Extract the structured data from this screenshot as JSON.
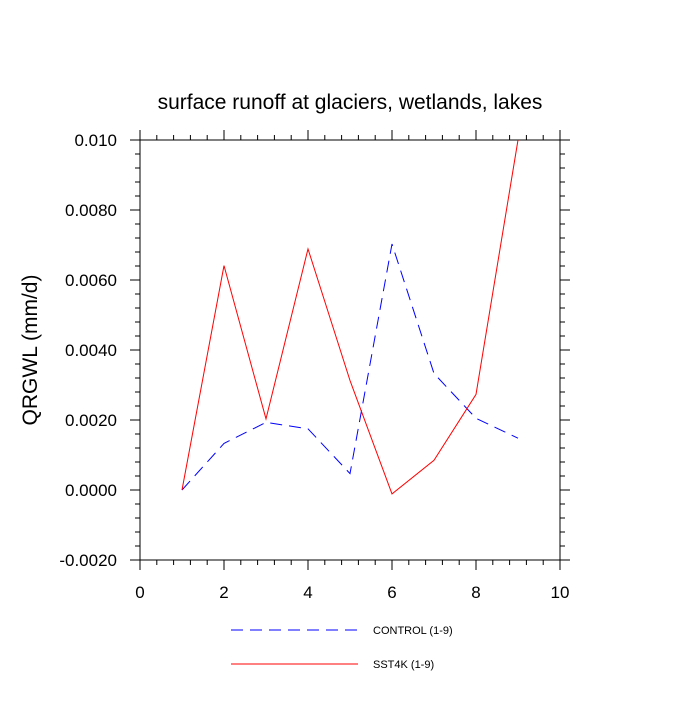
{
  "chart_data": {
    "type": "line",
    "title": "surface runoff at glaciers, wetlands, lakes",
    "xlabel": "",
    "ylabel": "QRGWL  (mm/d)",
    "xlim": [
      0,
      10
    ],
    "ylim": [
      -0.002,
      0.01
    ],
    "xticks": [
      0,
      2,
      4,
      6,
      8,
      10
    ],
    "xtick_labels": [
      "0",
      "2",
      "4",
      "6",
      "8",
      "10"
    ],
    "yticks": [
      -0.002,
      0.0,
      0.002,
      0.004,
      0.006,
      0.008,
      0.01
    ],
    "ytick_labels": [
      "-0.0020",
      "0.0000",
      "0.0020",
      "0.0040",
      "0.0060",
      "0.0080",
      "0.010"
    ],
    "grid": false,
    "legend_position": "bottom",
    "series": [
      {
        "name": "CONTROL (1-9)",
        "color": "#0000ff",
        "dash": "dashed",
        "x": [
          1,
          2,
          3,
          4,
          5,
          6,
          7,
          8,
          9
        ],
        "y": [
          0.0,
          0.00133,
          0.00193,
          0.00175,
          0.00047,
          0.00703,
          0.00333,
          0.00205,
          0.00148
        ]
      },
      {
        "name": "SST4K (1-9)",
        "color": "#ff0000",
        "dash": "solid",
        "x": [
          1,
          2,
          3,
          4,
          5,
          6,
          7,
          8,
          9
        ],
        "y": [
          0.0,
          0.00641,
          0.00203,
          0.00689,
          0.00313,
          -0.00011,
          0.00085,
          0.00273,
          0.01
        ]
      }
    ]
  }
}
